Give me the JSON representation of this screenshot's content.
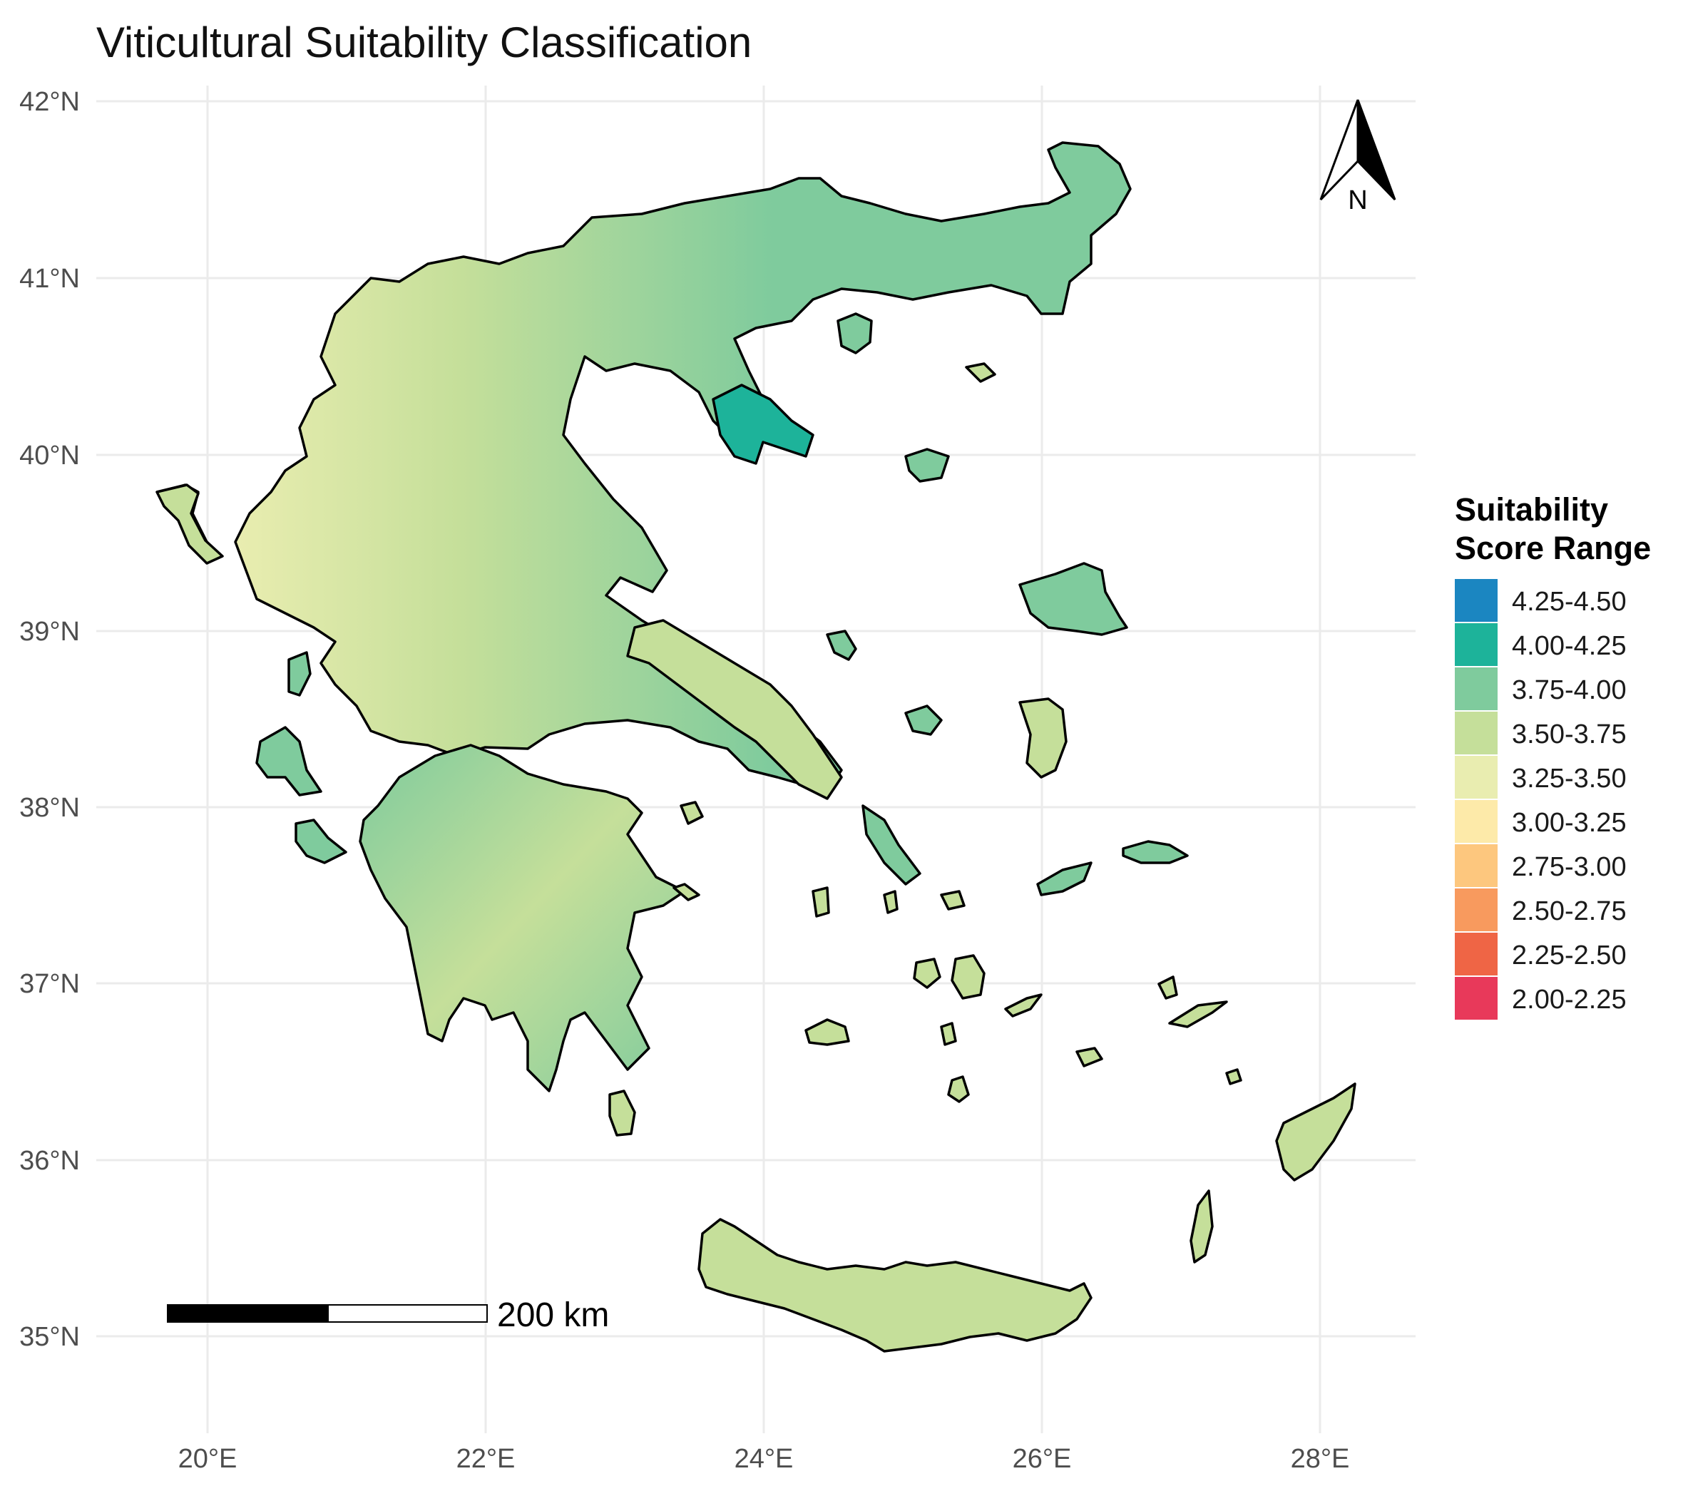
{
  "title": "Viticultural Suitability Classification",
  "axes": {
    "lat_ticks": [
      "42°N",
      "41°N",
      "40°N",
      "39°N",
      "38°N",
      "37°N",
      "36°N",
      "35°N"
    ],
    "lon_ticks": [
      "20°E",
      "22°E",
      "24°E",
      "26°E",
      "28°E"
    ]
  },
  "legend": {
    "title_line1": "Suitability",
    "title_line2": "Score Range",
    "classes": [
      {
        "label": "4.25-4.50",
        "color": "#1b86c1"
      },
      {
        "label": "4.00-4.25",
        "color": "#1db39a"
      },
      {
        "label": "3.75-4.00",
        "color": "#7fcb9d"
      },
      {
        "label": "3.50-3.75",
        "color": "#c5df9a"
      },
      {
        "label": "3.25-3.50",
        "color": "#e9edb0"
      },
      {
        "label": "3.00-3.25",
        "color": "#fdeaa9"
      },
      {
        "label": "2.75-3.00",
        "color": "#fdc77e"
      },
      {
        "label": "2.50-2.75",
        "color": "#f89a5e"
      },
      {
        "label": "2.25-2.50",
        "color": "#ef6545"
      },
      {
        "label": "2.00-2.25",
        "color": "#e8395a"
      }
    ]
  },
  "scale_bar": {
    "label": "200 km"
  },
  "north_arrow": {
    "label": "N",
    "icon": "north-arrow-icon"
  },
  "colors": {
    "grid": "#ebebeb",
    "outline": "#000000",
    "background": "#ffffff"
  }
}
